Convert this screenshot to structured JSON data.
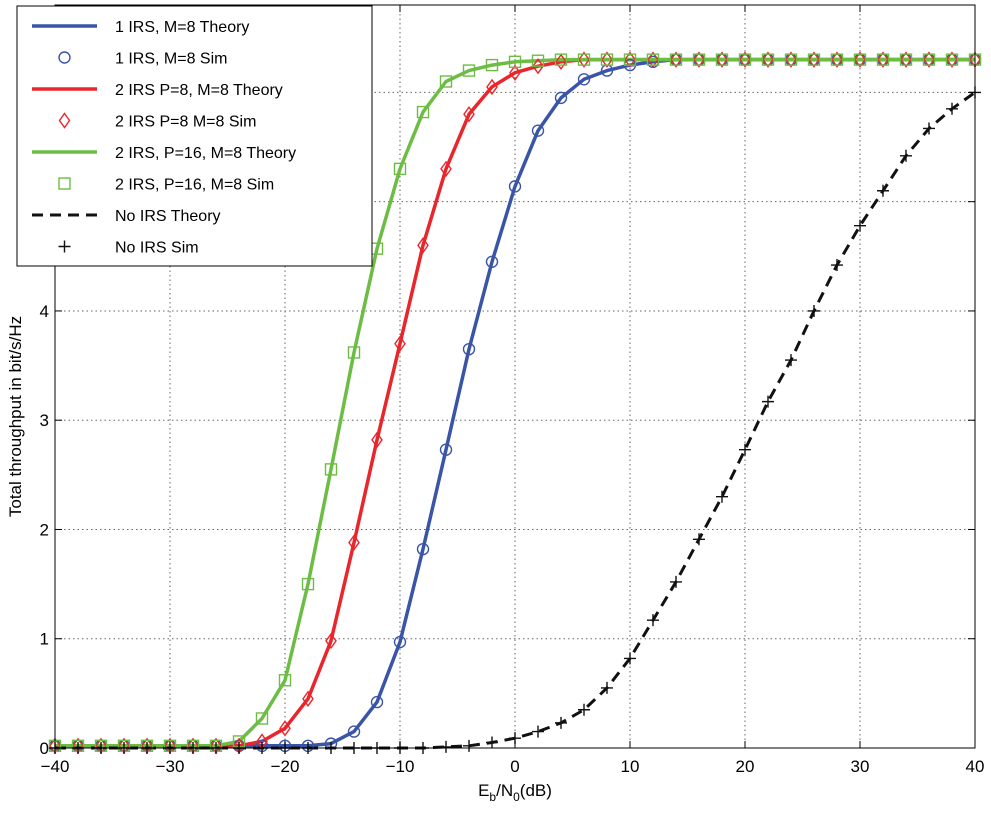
{
  "chart_data": {
    "type": "line",
    "xlabel": "E_b/N_0(dB)",
    "xlabel_parts": {
      "main": "E",
      "sub1": "b",
      "mid": "/N",
      "sub2": "0",
      "tail": "(dB)"
    },
    "ylabel": "Total throughput in bit/s/Hz",
    "xlim": [
      -40,
      40
    ],
    "ylim": [
      0,
      6.8
    ],
    "xticks": [
      -40,
      -30,
      -20,
      -10,
      0,
      10,
      20,
      30,
      40
    ],
    "yticks": [
      0,
      1,
      2,
      3,
      4
    ],
    "grid": true,
    "legend_position": "top-left",
    "colors": {
      "blue": "#3a55a8",
      "red": "#e8262b",
      "green": "#6dbd45",
      "black": "#111111"
    },
    "series": [
      {
        "name": "1 IRS, M=8 Theory",
        "style": "line",
        "color": "#3a55a8",
        "x": [
          -40,
          -38,
          -36,
          -34,
          -32,
          -30,
          -28,
          -26,
          -24,
          -22,
          -20,
          -18,
          -16,
          -14,
          -12,
          -10,
          -8,
          -6,
          -4,
          -2,
          0,
          2,
          4,
          6,
          8,
          10,
          12,
          14,
          16,
          18,
          20,
          22,
          24,
          26,
          28,
          30,
          32,
          34,
          36,
          38,
          40
        ],
        "y": [
          0.02,
          0.02,
          0.02,
          0.02,
          0.02,
          0.02,
          0.02,
          0.02,
          0.02,
          0.02,
          0.02,
          0.02,
          0.04,
          0.15,
          0.42,
          0.97,
          1.82,
          2.73,
          3.65,
          4.45,
          5.14,
          5.65,
          5.95,
          6.12,
          6.2,
          6.25,
          6.28,
          6.3,
          6.3,
          6.3,
          6.3,
          6.3,
          6.3,
          6.3,
          6.3,
          6.3,
          6.3,
          6.3,
          6.3,
          6.3,
          6.3
        ]
      },
      {
        "name": "1 IRS, M=8 Sim",
        "style": "marker",
        "marker": "circle",
        "color": "#3a55a8",
        "x": [
          -40,
          -38,
          -36,
          -34,
          -32,
          -30,
          -28,
          -26,
          -24,
          -22,
          -20,
          -18,
          -16,
          -14,
          -12,
          -10,
          -8,
          -6,
          -4,
          -2,
          0,
          2,
          4,
          6,
          8,
          10,
          12,
          14,
          16,
          18,
          20,
          22,
          24,
          26,
          28,
          30,
          32,
          34,
          36,
          38,
          40
        ],
        "y": [
          0.02,
          0.02,
          0.02,
          0.02,
          0.02,
          0.02,
          0.02,
          0.02,
          0.02,
          0.02,
          0.02,
          0.02,
          0.04,
          0.15,
          0.42,
          0.97,
          1.82,
          2.73,
          3.65,
          4.45,
          5.14,
          5.65,
          5.95,
          6.12,
          6.2,
          6.25,
          6.28,
          6.3,
          6.3,
          6.3,
          6.3,
          6.3,
          6.3,
          6.3,
          6.3,
          6.3,
          6.3,
          6.3,
          6.3,
          6.3,
          6.3
        ]
      },
      {
        "name": "2 IRS P=8, M=8 Theory",
        "style": "line",
        "color": "#e8262b",
        "x": [
          -40,
          -38,
          -36,
          -34,
          -32,
          -30,
          -28,
          -26,
          -24,
          -22,
          -20,
          -18,
          -16,
          -14,
          -12,
          -10,
          -8,
          -6,
          -4,
          -2,
          0,
          2,
          4,
          6,
          8,
          10,
          12,
          14,
          16,
          18,
          20,
          22,
          24,
          26,
          28,
          30,
          32,
          34,
          36,
          38,
          40
        ],
        "y": [
          0.02,
          0.02,
          0.02,
          0.02,
          0.02,
          0.02,
          0.02,
          0.02,
          0.02,
          0.06,
          0.18,
          0.45,
          0.98,
          1.88,
          2.82,
          3.7,
          4.6,
          5.3,
          5.8,
          6.05,
          6.18,
          6.24,
          6.28,
          6.3,
          6.3,
          6.3,
          6.3,
          6.3,
          6.3,
          6.3,
          6.3,
          6.3,
          6.3,
          6.3,
          6.3,
          6.3,
          6.3,
          6.3,
          6.3,
          6.3,
          6.3
        ]
      },
      {
        "name": "2 IRS P=8 M=8 Sim",
        "style": "marker",
        "marker": "diamond",
        "color": "#e8262b",
        "x": [
          -40,
          -38,
          -36,
          -34,
          -32,
          -30,
          -28,
          -26,
          -24,
          -22,
          -20,
          -18,
          -16,
          -14,
          -12,
          -10,
          -8,
          -6,
          -4,
          -2,
          0,
          2,
          4,
          6,
          8,
          10,
          12,
          14,
          16,
          18,
          20,
          22,
          24,
          26,
          28,
          30,
          32,
          34,
          36,
          38,
          40
        ],
        "y": [
          0.02,
          0.02,
          0.02,
          0.02,
          0.02,
          0.02,
          0.02,
          0.02,
          0.02,
          0.06,
          0.18,
          0.45,
          0.98,
          1.88,
          2.82,
          3.7,
          4.6,
          5.3,
          5.8,
          6.05,
          6.18,
          6.24,
          6.28,
          6.3,
          6.3,
          6.3,
          6.3,
          6.3,
          6.3,
          6.3,
          6.3,
          6.3,
          6.3,
          6.3,
          6.3,
          6.3,
          6.3,
          6.3,
          6.3,
          6.3,
          6.3
        ]
      },
      {
        "name": "2 IRS, P=16, M=8 Theory",
        "style": "line",
        "color": "#6dbd45",
        "x": [
          -40,
          -38,
          -36,
          -34,
          -32,
          -30,
          -28,
          -26,
          -24,
          -22,
          -20,
          -18,
          -16,
          -14,
          -12,
          -10,
          -8,
          -6,
          -4,
          -2,
          0,
          2,
          4,
          6,
          8,
          10,
          12,
          14,
          16,
          18,
          20,
          22,
          24,
          26,
          28,
          30,
          32,
          34,
          36,
          38,
          40
        ],
        "y": [
          0.02,
          0.02,
          0.02,
          0.02,
          0.02,
          0.02,
          0.02,
          0.02,
          0.06,
          0.27,
          0.62,
          1.5,
          2.55,
          3.62,
          4.57,
          5.3,
          5.82,
          6.1,
          6.2,
          6.25,
          6.28,
          6.29,
          6.3,
          6.3,
          6.3,
          6.3,
          6.3,
          6.3,
          6.3,
          6.3,
          6.3,
          6.3,
          6.3,
          6.3,
          6.3,
          6.3,
          6.3,
          6.3,
          6.3,
          6.3,
          6.3
        ]
      },
      {
        "name": "2 IRS, P=16, M=8 Sim",
        "style": "marker",
        "marker": "square",
        "color": "#6dbd45",
        "x": [
          -40,
          -38,
          -36,
          -34,
          -32,
          -30,
          -28,
          -26,
          -24,
          -22,
          -20,
          -18,
          -16,
          -14,
          -12,
          -10,
          -8,
          -6,
          -4,
          -2,
          0,
          2,
          4,
          6,
          8,
          10,
          12,
          14,
          16,
          18,
          20,
          22,
          24,
          26,
          28,
          30,
          32,
          34,
          36,
          38,
          40
        ],
        "y": [
          0.02,
          0.02,
          0.02,
          0.02,
          0.02,
          0.02,
          0.02,
          0.02,
          0.06,
          0.27,
          0.62,
          1.5,
          2.55,
          3.62,
          4.57,
          5.3,
          5.82,
          6.1,
          6.2,
          6.25,
          6.28,
          6.29,
          6.3,
          6.3,
          6.3,
          6.3,
          6.3,
          6.3,
          6.3,
          6.3,
          6.3,
          6.3,
          6.3,
          6.3,
          6.3,
          6.3,
          6.3,
          6.3,
          6.3,
          6.3,
          6.3
        ]
      },
      {
        "name": "No IRS Theory",
        "style": "dashed",
        "color": "#111111",
        "x": [
          -40,
          -38,
          -36,
          -34,
          -32,
          -30,
          -28,
          -26,
          -24,
          -22,
          -20,
          -18,
          -16,
          -14,
          -12,
          -10,
          -8,
          -6,
          -4,
          -2,
          0,
          2,
          4,
          6,
          8,
          10,
          12,
          14,
          16,
          18,
          20,
          22,
          24,
          26,
          28,
          30,
          32,
          34,
          36,
          38,
          40
        ],
        "y": [
          0,
          0,
          0,
          0,
          0,
          0,
          0,
          0,
          0,
          0,
          0,
          0,
          0,
          0,
          0,
          0,
          0,
          0.01,
          0.02,
          0.05,
          0.09,
          0.15,
          0.23,
          0.35,
          0.55,
          0.82,
          1.17,
          1.52,
          1.91,
          2.3,
          2.73,
          3.17,
          3.55,
          4.0,
          4.42,
          4.78,
          5.1,
          5.42,
          5.67,
          5.85,
          6.0
        ]
      },
      {
        "name": "No IRS Sim",
        "style": "marker",
        "marker": "plus",
        "color": "#111111",
        "x": [
          -40,
          -38,
          -36,
          -34,
          -32,
          -30,
          -28,
          -26,
          -24,
          -22,
          -20,
          -18,
          -16,
          -14,
          -12,
          -10,
          -8,
          -6,
          -4,
          -2,
          0,
          2,
          4,
          6,
          8,
          10,
          12,
          14,
          16,
          18,
          20,
          22,
          24,
          26,
          28,
          30,
          32,
          34,
          36,
          38,
          40
        ],
        "y": [
          0,
          0,
          0,
          0,
          0,
          0,
          0,
          0,
          0,
          0,
          0,
          0,
          0,
          0,
          0,
          0,
          0,
          0.01,
          0.02,
          0.05,
          0.09,
          0.15,
          0.23,
          0.35,
          0.55,
          0.82,
          1.17,
          1.52,
          1.91,
          2.3,
          2.73,
          3.17,
          3.55,
          4.0,
          4.42,
          4.78,
          5.1,
          5.42,
          5.67,
          5.85,
          6.0
        ]
      }
    ]
  }
}
